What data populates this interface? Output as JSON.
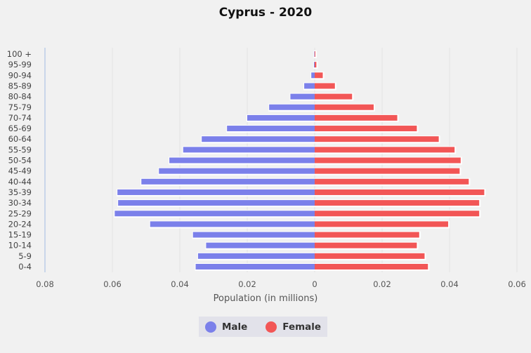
{
  "chart_data": {
    "type": "bar",
    "orientation": "horizontal-pyramid",
    "title": "Cyprus - 2020",
    "xlabel": "Population (in millions)",
    "ylabel": "",
    "xlim": [
      -0.08,
      0.06
    ],
    "xticks": [
      -0.08,
      -0.06,
      -0.04,
      -0.02,
      0,
      0.02,
      0.04,
      0.06
    ],
    "xtick_labels": [
      "0.08",
      "0.06",
      "0.04",
      "0.02",
      "0",
      "0.02",
      "0.04",
      "0.06"
    ],
    "grid": true,
    "legend_placement": "bottom",
    "categories": [
      "100 +",
      "95-99",
      "90-94",
      "85-89",
      "80-84",
      "75-79",
      "70-74",
      "65-69",
      "60-64",
      "55-59",
      "50-54",
      "45-49",
      "40-44",
      "35-39",
      "30-34",
      "25-29",
      "20-24",
      "15-19",
      "10-14",
      "5-9",
      "0-4"
    ],
    "series": [
      {
        "name": "Male",
        "color": "#7b80ea",
        "values": [
          0.0001,
          0.0002,
          0.001,
          0.0031,
          0.0072,
          0.0135,
          0.02,
          0.026,
          0.0335,
          0.039,
          0.0431,
          0.0462,
          0.0514,
          0.0585,
          0.0583,
          0.0593,
          0.0488,
          0.0361,
          0.0322,
          0.0346,
          0.0353
        ]
      },
      {
        "name": "Female",
        "color": "#f25656",
        "values": [
          0.0002,
          0.0005,
          0.0024,
          0.006,
          0.0111,
          0.0175,
          0.0245,
          0.0303,
          0.0368,
          0.0415,
          0.0433,
          0.043,
          0.0457,
          0.0503,
          0.0488,
          0.0488,
          0.0396,
          0.031,
          0.0303,
          0.0326,
          0.0336
        ]
      }
    ]
  }
}
